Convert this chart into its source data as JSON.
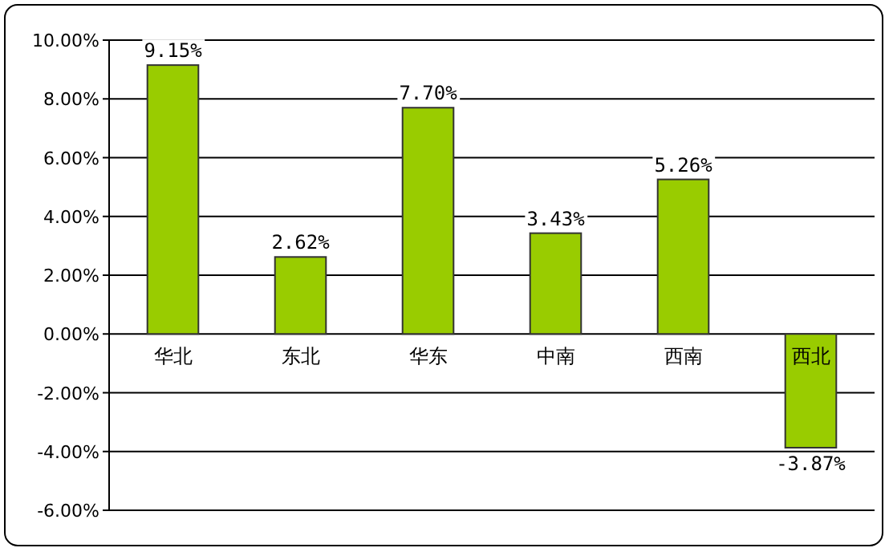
{
  "chart_data": {
    "type": "bar",
    "categories": [
      "华北",
      "东北",
      "华东",
      "中南",
      "西南",
      "西北"
    ],
    "values": [
      9.15,
      2.62,
      7.7,
      3.43,
      5.26,
      -3.87
    ],
    "value_labels": [
      "9.15%",
      "2.62%",
      "7.70%",
      "3.43%",
      "5.26%",
      "-3.87%"
    ],
    "color": "#99cc00",
    "ylim": [
      -6,
      10
    ],
    "yticks": [
      {
        "value": -6,
        "label": "-6.00%"
      },
      {
        "value": -4,
        "label": "-4.00%"
      },
      {
        "value": -2,
        "label": "-2.00%"
      },
      {
        "value": 0,
        "label": "0.00%"
      },
      {
        "value": 2,
        "label": "2.00%"
      },
      {
        "value": 4,
        "label": "4.00%"
      },
      {
        "value": 6,
        "label": "6.00%"
      },
      {
        "value": 8,
        "label": "8.00%"
      },
      {
        "value": 10,
        "label": "10.00%"
      }
    ],
    "grid": "y"
  }
}
